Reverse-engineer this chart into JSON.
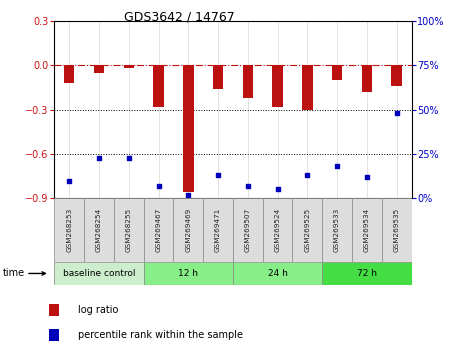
{
  "title": "GDS3642 / 14767",
  "samples": [
    "GSM268253",
    "GSM268254",
    "GSM268255",
    "GSM269467",
    "GSM269469",
    "GSM269471",
    "GSM269507",
    "GSM269524",
    "GSM269525",
    "GSM269533",
    "GSM269534",
    "GSM269535"
  ],
  "log_ratio": [
    -0.12,
    -0.05,
    -0.02,
    -0.28,
    -0.86,
    -0.16,
    -0.22,
    -0.28,
    -0.3,
    -0.1,
    -0.18,
    -0.14
  ],
  "percentile_rank": [
    10,
    23,
    23,
    7,
    2,
    13,
    7,
    5,
    13,
    18,
    12,
    48
  ],
  "ylim_left": [
    -0.9,
    0.3
  ],
  "ylim_right": [
    0,
    100
  ],
  "yticks_left": [
    -0.9,
    -0.6,
    -0.3,
    0,
    0.3
  ],
  "yticks_right": [
    0,
    25,
    50,
    75,
    100
  ],
  "bar_color": "#bb1111",
  "scatter_color": "#0000bb",
  "dotted_lines": [
    -0.3,
    -0.6
  ],
  "groups": [
    {
      "label": "baseline control",
      "start": 0,
      "end": 3,
      "color": "#cceecc"
    },
    {
      "label": "12 h",
      "start": 3,
      "end": 6,
      "color": "#88ee88"
    },
    {
      "label": "24 h",
      "start": 6,
      "end": 9,
      "color": "#88ee88"
    },
    {
      "label": "72 h",
      "start": 9,
      "end": 12,
      "color": "#44dd44"
    }
  ],
  "time_label": "time",
  "legend_bar_label": "log ratio",
  "legend_scatter_label": "percentile rank within the sample",
  "background_color": "#ffffff",
  "plot_bg_color": "#ffffff",
  "tick_label_color_left": "#cc1111",
  "tick_label_color_right": "#0000cc",
  "bar_width": 0.35
}
